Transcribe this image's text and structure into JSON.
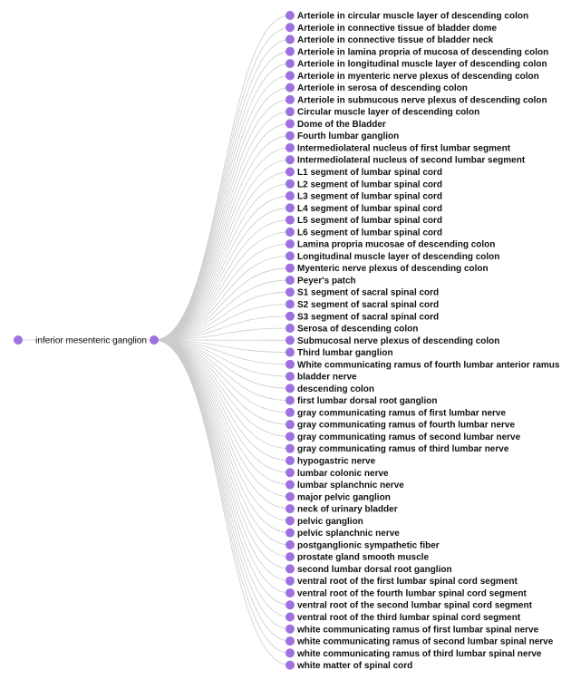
{
  "tree": {
    "root_color": "#a070e0",
    "link_color": "#cccccc",
    "parent_label": "inferior mesenteric ganglion",
    "children": [
      "Arteriole in circular muscle layer of descending colon",
      "Arteriole in connective tissue of bladder dome",
      "Arteriole in connective tissue of bladder neck",
      "Arteriole in lamina propria of mucosa of descending colon",
      "Arteriole in longitudinal muscle layer of descending colon",
      "Arteriole in myenteric nerve plexus of descending colon",
      "Arteriole in serosa of descending colon",
      "Arteriole in submucous nerve plexus of descending colon",
      "Circular muscle layer of descending colon",
      "Dome of the Bladder",
      "Fourth lumbar ganglion",
      "Intermediolateral nucleus of first lumbar segment",
      "Intermediolateral nucleus of second lumbar segment",
      "L1 segment of lumbar spinal cord",
      "L2 segment of lumbar spinal cord",
      "L3 segment of lumbar spinal cord",
      "L4 segment of lumbar spinal cord",
      "L5 segment of lumbar spinal cord",
      "L6 segment of lumbar spinal cord",
      "Lamina propria mucosae of descending colon",
      "Longitudinal muscle layer of descending colon",
      "Myenteric nerve plexus of descending colon",
      "Peyer's patch",
      "S1 segment of sacral spinal cord",
      "S2 segment of sacral spinal cord",
      "S3 segment of sacral spinal cord",
      "Serosa of descending colon",
      "Submucosal nerve plexus of descending colon",
      "Third lumbar ganglion",
      "White communicating ramus of fourth lumbar anterior ramus",
      "bladder nerve",
      "descending colon",
      "first lumbar dorsal root ganglion",
      "gray communicating ramus of first lumbar nerve",
      "gray communicating ramus of fourth lumbar nerve",
      "gray communicating ramus of second lumbar nerve",
      "gray communicating ramus of third lumbar nerve",
      "hypogastric nerve",
      "lumbar colonic nerve",
      "lumbar splanchnic nerve",
      "major pelvic ganglion",
      "neck of urinary bladder",
      "pelvic ganglion",
      "pelvic splanchnic nerve",
      "postganglionic sympathetic fiber",
      "prostate gland smooth muscle",
      "second lumbar dorsal root ganglion",
      "ventral root of the first lumbar spinal cord segment",
      "ventral root of the fourth lumbar spinal cord segment",
      "ventral root of the second lumbar spinal cord segment",
      "ventral root of the third lumbar spinal cord segment",
      "white communicating ramus of first lumbar spinal nerve",
      "white communicating ramus of second lumbar spinal nerve",
      "white communicating ramus of third lumbar spinal nerve",
      "white matter of spinal cord"
    ]
  }
}
